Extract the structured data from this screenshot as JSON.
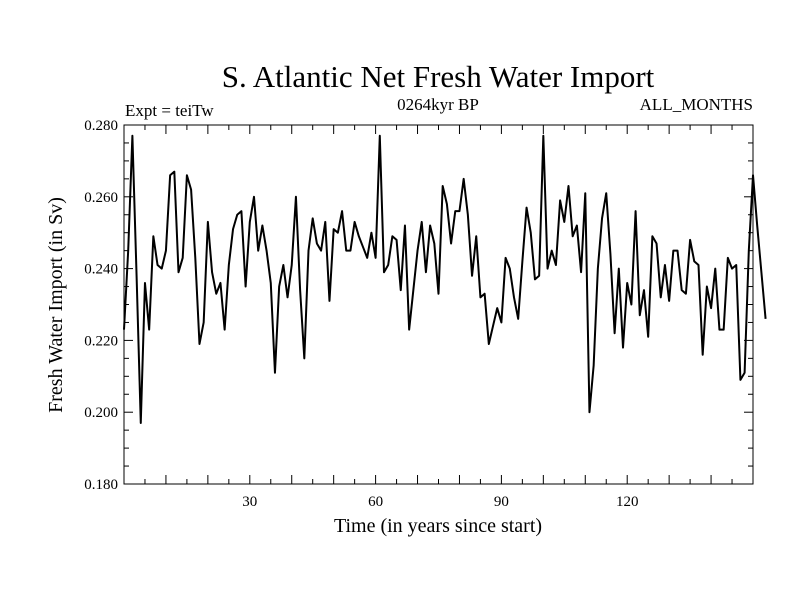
{
  "chart_data": {
    "type": "line",
    "title": "S. Atlantic Net Fresh Water Import",
    "subtitle_left": "Expt = teiTw",
    "subtitle_center": "0264kyr BP",
    "subtitle_right": "ALL_MONTHS",
    "xlabel": "Time (in years since start)",
    "ylabel": "Fresh Water Import (in Sv)",
    "xlim": [
      0,
      150
    ],
    "ylim": [
      0.18,
      0.28
    ],
    "x_ticks": [
      30,
      60,
      90,
      120
    ],
    "x_tick_labels": [
      "30",
      "60",
      "90",
      "120"
    ],
    "y_ticks": [
      0.18,
      0.2,
      0.22,
      0.24,
      0.26,
      0.28
    ],
    "y_tick_labels": [
      "0.180",
      "0.200",
      "0.220",
      "0.240",
      "0.260",
      "0.280"
    ],
    "grid": false,
    "series": [
      {
        "name": "Fresh Water Import",
        "color": "#000000",
        "x_start": 0,
        "x_step": 1,
        "values": [
          0.223,
          0.245,
          0.277,
          0.238,
          0.197,
          0.236,
          0.223,
          0.249,
          0.241,
          0.24,
          0.245,
          0.266,
          0.267,
          0.239,
          0.243,
          0.266,
          0.262,
          0.243,
          0.219,
          0.225,
          0.253,
          0.239,
          0.233,
          0.236,
          0.223,
          0.241,
          0.251,
          0.255,
          0.256,
          0.235,
          0.253,
          0.26,
          0.245,
          0.252,
          0.245,
          0.236,
          0.211,
          0.235,
          0.241,
          0.232,
          0.241,
          0.26,
          0.234,
          0.215,
          0.245,
          0.254,
          0.247,
          0.245,
          0.253,
          0.231,
          0.251,
          0.25,
          0.256,
          0.245,
          0.245,
          0.253,
          0.249,
          0.246,
          0.243,
          0.25,
          0.243,
          0.277,
          0.239,
          0.241,
          0.249,
          0.248,
          0.234,
          0.252,
          0.223,
          0.234,
          0.245,
          0.253,
          0.239,
          0.252,
          0.247,
          0.233,
          0.263,
          0.258,
          0.247,
          0.256,
          0.256,
          0.265,
          0.255,
          0.238,
          0.249,
          0.232,
          0.233,
          0.219,
          0.224,
          0.229,
          0.225,
          0.243,
          0.24,
          0.232,
          0.226,
          0.242,
          0.257,
          0.25,
          0.237,
          0.238,
          0.277,
          0.24,
          0.245,
          0.241,
          0.259,
          0.253,
          0.263,
          0.249,
          0.252,
          0.239,
          0.261,
          0.2,
          0.213,
          0.24,
          0.254,
          0.261,
          0.244,
          0.222,
          0.24,
          0.218,
          0.236,
          0.23,
          0.256,
          0.227,
          0.234,
          0.221,
          0.249,
          0.247,
          0.232,
          0.241,
          0.231,
          0.245,
          0.245,
          0.234,
          0.233,
          0.248,
          0.242,
          0.241,
          0.216,
          0.235,
          0.229,
          0.24,
          0.223,
          0.223,
          0.243,
          0.24,
          0.241,
          0.209,
          0.211,
          0.245,
          0.266,
          0.252,
          0.239,
          0.226
        ]
      }
    ]
  }
}
